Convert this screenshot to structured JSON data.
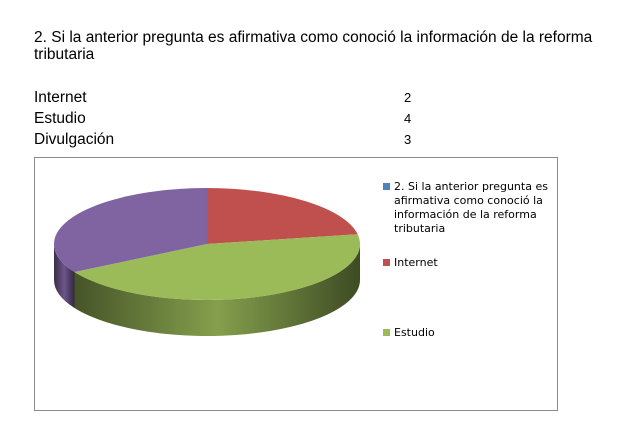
{
  "question": "2. Si la anterior pregunta es afirmativa como conoció la información de la reforma tributaria",
  "table": [
    {
      "label": "Internet",
      "value": "2"
    },
    {
      "label": "Estudio",
      "value": "4"
    },
    {
      "label": "Divulgación",
      "value": "3"
    }
  ],
  "chart_data": {
    "type": "pie",
    "style": "3d",
    "categories": [
      "Internet",
      "Estudio",
      "Divulgación"
    ],
    "values": [
      2,
      4,
      3
    ],
    "colors": [
      "#c0504d",
      "#9bbb59",
      "#8064a2"
    ],
    "legend": [
      {
        "label": "2. Si la anterior pregunta es afirmativa como conoció la información de la reforma tributaria",
        "color": "#4f81bd"
      },
      {
        "label": "Internet",
        "color": "#c0504d"
      },
      {
        "label": "Estudio",
        "color": "#9bbb59"
      }
    ],
    "legend_position": "right"
  }
}
